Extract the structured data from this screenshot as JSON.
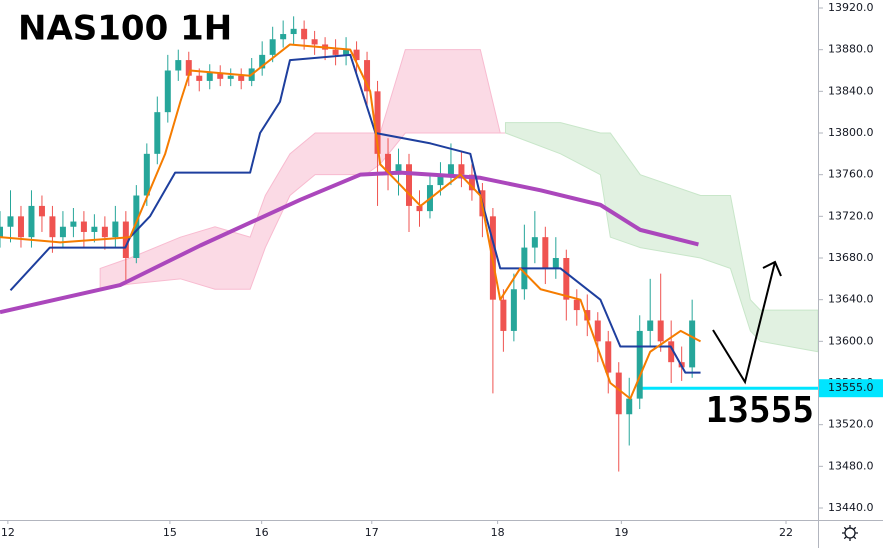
{
  "chart_data": {
    "type": "candlestick",
    "title": "NAS100 1H",
    "annotation": "13555",
    "up_color": "#26a69a",
    "down_color": "#ef5350",
    "xlim": [
      0,
      156
    ],
    "ylim": [
      13440,
      13920
    ],
    "xticks": [
      {
        "value": 1.5,
        "label": "12"
      },
      {
        "value": 32.4,
        "label": "15"
      },
      {
        "value": 49.9,
        "label": "16"
      },
      {
        "value": 70.9,
        "label": "17"
      },
      {
        "value": 94.9,
        "label": "18"
      },
      {
        "value": 118.5,
        "label": "19"
      },
      {
        "value": 149.9,
        "label": "22"
      }
    ],
    "yticks": [
      {
        "value": 13440,
        "label": "13440.0"
      },
      {
        "value": 13480,
        "label": "13480.0"
      },
      {
        "value": 13520,
        "label": "13520.0"
      },
      {
        "value": 13560,
        "label": "13560.0"
      },
      {
        "value": 13600,
        "label": "13600.0"
      },
      {
        "value": 13640,
        "label": "13640.0"
      },
      {
        "value": 13680,
        "label": "13680.0"
      },
      {
        "value": 13720,
        "label": "13720.0"
      },
      {
        "value": 13760,
        "label": "13760.0"
      },
      {
        "value": 13800,
        "label": "13800.0"
      },
      {
        "value": 13840,
        "label": "13840.0"
      },
      {
        "value": 13880,
        "label": "13880.0"
      },
      {
        "value": 13920,
        "label": "13920.0"
      }
    ],
    "x": [
      0,
      2,
      4,
      6,
      8,
      10,
      12,
      14,
      16,
      18,
      20,
      22,
      24,
      26,
      28,
      30,
      32,
      34,
      36,
      38,
      40,
      42,
      44,
      46,
      48,
      50,
      52,
      54,
      56,
      58,
      60,
      62,
      64,
      66,
      68,
      70,
      72,
      74,
      76,
      78,
      80,
      82,
      84,
      86,
      88,
      90,
      92,
      94,
      96,
      98,
      100,
      102,
      104,
      106,
      108,
      110,
      112,
      114,
      116,
      118,
      120,
      122,
      124,
      126,
      128,
      130,
      132
    ],
    "open": [
      13700,
      13710,
      13720,
      13700,
      13730,
      13720,
      13700,
      13710,
      13715,
      13705,
      13710,
      13700,
      13715,
      13680,
      13740,
      13780,
      13820,
      13860,
      13870,
      13855,
      13850,
      13858,
      13852,
      13855,
      13850,
      13862,
      13875,
      13890,
      13895,
      13900,
      13890,
      13885,
      13880,
      13875,
      13880,
      13870,
      13840,
      13780,
      13760,
      13770,
      13730,
      13725,
      13750,
      13760,
      13770,
      13760,
      13745,
      13720,
      13640,
      13610,
      13650,
      13690,
      13700,
      13670,
      13680,
      13640,
      13630,
      13620,
      13600,
      13570,
      13530,
      13545,
      13610,
      13620,
      13600,
      13580,
      13575
    ],
    "high": [
      13725,
      13745,
      13730,
      13745,
      13740,
      13730,
      13725,
      13728,
      13725,
      13722,
      13720,
      13730,
      13725,
      13750,
      13790,
      13835,
      13875,
      13880,
      13878,
      13862,
      13866,
      13865,
      13862,
      13862,
      13872,
      13888,
      13902,
      13908,
      13912,
      13908,
      13898,
      13892,
      13890,
      13892,
      13888,
      13878,
      13850,
      13795,
      13785,
      13780,
      13745,
      13762,
      13772,
      13790,
      13782,
      13770,
      13752,
      13728,
      13650,
      13665,
      13712,
      13725,
      13710,
      13700,
      13688,
      13650,
      13645,
      13628,
      13610,
      13580,
      13565,
      13625,
      13660,
      13665,
      13620,
      13595,
      13640
    ],
    "low": [
      13690,
      13695,
      13690,
      13690,
      13705,
      13685,
      13690,
      13700,
      13690,
      13695,
      13688,
      13690,
      13655,
      13675,
      13730,
      13770,
      13810,
      13850,
      13845,
      13840,
      13842,
      13845,
      13845,
      13842,
      13845,
      13855,
      13868,
      13882,
      13885,
      13880,
      13875,
      13870,
      13865,
      13865,
      13858,
      13825,
      13730,
      13745,
      13740,
      13705,
      13710,
      13718,
      13740,
      13750,
      13748,
      13735,
      13700,
      13550,
      13590,
      13600,
      13640,
      13675,
      13655,
      13660,
      13620,
      13615,
      13605,
      13580,
      13550,
      13475,
      13500,
      13535,
      13595,
      13590,
      13560,
      13562,
      13565
    ],
    "close": [
      13710,
      13720,
      13700,
      13730,
      13720,
      13700,
      13710,
      13715,
      13705,
      13710,
      13700,
      13715,
      13680,
      13740,
      13780,
      13820,
      13860,
      13870,
      13855,
      13850,
      13858,
      13852,
      13855,
      13850,
      13862,
      13875,
      13890,
      13895,
      13900,
      13890,
      13885,
      13880,
      13875,
      13880,
      13870,
      13840,
      13780,
      13760,
      13770,
      13730,
      13725,
      13750,
      13760,
      13770,
      13760,
      13745,
      13720,
      13640,
      13610,
      13650,
      13690,
      13700,
      13670,
      13680,
      13640,
      13630,
      13620,
      13600,
      13570,
      13530,
      13545,
      13610,
      13620,
      13600,
      13580,
      13575,
      13620
    ],
    "lines": [
      {
        "color": "#ab47bc",
        "width": 4,
        "x": [
          0,
          22.9,
          38.2,
          57.3,
          68.7,
          76.3,
          91.6,
          103.1,
          114.5,
          122.1,
          133.2
        ],
        "values": [
          13628,
          13654,
          13692,
          13736,
          13760,
          13762,
          13757,
          13745,
          13731,
          13707,
          13693
        ]
      },
      {
        "color": "#1e3f9e",
        "width": 2,
        "x": [
          2,
          9.5,
          23.9,
          24.8,
          28.6,
          33.4,
          47.7,
          49.6,
          53.4,
          55.3,
          66.8,
          71.6,
          82.1,
          89.7,
          91.6,
          95.4,
          106.9,
          114.5,
          118.3,
          127.9,
          130.7,
          133.6
        ],
        "values": [
          13649,
          13690,
          13690,
          13700,
          13720,
          13762,
          13762,
          13800,
          13830,
          13870,
          13875,
          13800,
          13790,
          13780,
          13740,
          13670,
          13670,
          13640,
          13595,
          13595,
          13570,
          13570
        ]
      },
      {
        "color": "#f57c00",
        "width": 2,
        "x": [
          0,
          11.5,
          24.8,
          31.5,
          34.4,
          36.3,
          47.7,
          55.3,
          66.8,
          70.6,
          72.5,
          80.2,
          87.8,
          91.6,
          95.4,
          99.2,
          103.1,
          110.7,
          116.4,
          120.2,
          124,
          129.8,
          133.6
        ],
        "values": [
          13700,
          13695,
          13700,
          13780,
          13830,
          13860,
          13855,
          13885,
          13880,
          13840,
          13770,
          13730,
          13760,
          13740,
          13640,
          13670,
          13650,
          13640,
          13560,
          13545,
          13590,
          13610,
          13600
        ]
      }
    ],
    "clouds": [
      {
        "color": "#f8bbd0",
        "x": [
          19.1,
          24.8,
          34.4,
          41,
          47.7,
          50.6,
          55.3,
          60.1,
          69.7,
          72.5,
          77.3,
          91.6,
          95.4,
          96.4
        ],
        "upper": [
          13670,
          13680,
          13700,
          13710,
          13700,
          13740,
          13780,
          13800,
          13800,
          13800,
          13880,
          13880,
          13800,
          13800
        ],
        "lower": [
          13650,
          13655,
          13660,
          13650,
          13650,
          13690,
          13740,
          13760,
          13760,
          13770,
          13800,
          13800,
          13800,
          13800
        ]
      },
      {
        "color": "#c8e6c9",
        "x": [
          96.4,
          106.9,
          114.5,
          116.4,
          122.1,
          133.6,
          139.3,
          143.1,
          145,
          156
        ],
        "upper": [
          13810,
          13810,
          13800,
          13800,
          13760,
          13740,
          13740,
          13640,
          13630,
          13630
        ],
        "lower": [
          13800,
          13780,
          13760,
          13700,
          13690,
          13680,
          13670,
          13610,
          13600,
          13590
        ]
      }
    ],
    "level": {
      "value": 13555,
      "label": "13555.0",
      "color": "#00e5ff",
      "x0": 121.5
    }
  }
}
